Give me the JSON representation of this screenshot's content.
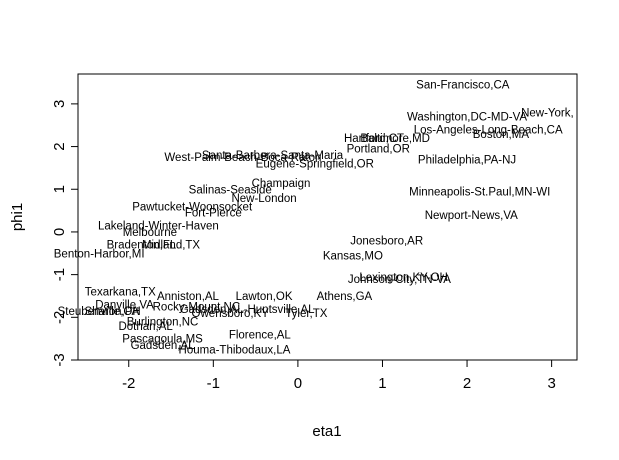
{
  "chart_data": {
    "type": "scatter",
    "title": "",
    "xlabel": "eta1",
    "ylabel": "phi1",
    "xlim": [
      -2.6,
      3.3
    ],
    "ylim": [
      -3.0,
      3.7
    ],
    "xticks": [
      "-2",
      "-1",
      "0",
      "1",
      "2",
      "3"
    ],
    "yticks": [
      "-3",
      "-2",
      "-1",
      "0",
      "1",
      "2",
      "3"
    ],
    "grid": false,
    "points": [
      {
        "label": "San-Francisco,CA",
        "x": 1.95,
        "y": 3.45
      },
      {
        "label": "Washington,DC-MD-VA",
        "x": 2.0,
        "y": 2.7
      },
      {
        "label": "New-York,",
        "x": 2.95,
        "y": 2.8
      },
      {
        "label": "Los-Angeles-Long-Beach,CA",
        "x": 2.25,
        "y": 2.4
      },
      {
        "label": "Boston,MA",
        "x": 2.4,
        "y": 2.3
      },
      {
        "label": "Hartford,CT",
        "x": 0.9,
        "y": 2.2
      },
      {
        "label": "Baltimore,MD",
        "x": 1.15,
        "y": 2.2
      },
      {
        "label": "Portland,OR",
        "x": 0.95,
        "y": 1.95
      },
      {
        "label": "Santa-Barbera-Santa-Maria",
        "x": -0.3,
        "y": 1.8
      },
      {
        "label": "West-Palm-Beach-Boca-Raton",
        "x": -0.65,
        "y": 1.75
      },
      {
        "label": "Eugene-Springfield,OR",
        "x": 0.2,
        "y": 1.6
      },
      {
        "label": "Philadelphia,PA-NJ",
        "x": 2.0,
        "y": 1.7
      },
      {
        "label": "Salinas-Seaside",
        "x": -0.8,
        "y": 1.0
      },
      {
        "label": "Champaign",
        "x": -0.2,
        "y": 1.15
      },
      {
        "label": "Minneapolis-St.Paul,MN-WI",
        "x": 2.15,
        "y": 0.95
      },
      {
        "label": "New-London",
        "x": -0.4,
        "y": 0.8
      },
      {
        "label": "Pawtucket-Woonsocket",
        "x": -1.25,
        "y": 0.6
      },
      {
        "label": "Fort-Pierce",
        "x": -1.0,
        "y": 0.45
      },
      {
        "label": "Newport-News,VA",
        "x": 2.05,
        "y": 0.4
      },
      {
        "label": "Lakeland-Winter-Haven",
        "x": -1.65,
        "y": 0.15
      },
      {
        "label": "Melbourne",
        "x": -1.75,
        "y": 0.0
      },
      {
        "label": "Bradenton,FL",
        "x": -1.85,
        "y": -0.3
      },
      {
        "label": "Midland,TX",
        "x": -1.5,
        "y": -0.3
      },
      {
        "label": "Benton-Harbor,MI",
        "x": -2.35,
        "y": -0.5
      },
      {
        "label": "Jonesboro,AR",
        "x": 1.05,
        "y": -0.2
      },
      {
        "label": "Kansas,MO",
        "x": 0.65,
        "y": -0.55
      },
      {
        "label": "Lexington,KY-OH",
        "x": 1.25,
        "y": -1.05
      },
      {
        "label": "Johnson-City,TN-VA",
        "x": 1.2,
        "y": -1.1
      },
      {
        "label": "Texarkana,TX",
        "x": -2.1,
        "y": -1.4
      },
      {
        "label": "Anniston,AL",
        "x": -1.3,
        "y": -1.5
      },
      {
        "label": "Lawton,OK",
        "x": -0.4,
        "y": -1.5
      },
      {
        "label": "Athens,GA",
        "x": 0.55,
        "y": -1.5
      },
      {
        "label": "Danville,VA",
        "x": -2.05,
        "y": -1.7
      },
      {
        "label": "Rocky-Mount,NC",
        "x": -1.2,
        "y": -1.75
      },
      {
        "label": "Gadsden,AL-Huntsville,AL",
        "x": -0.6,
        "y": -1.8
      },
      {
        "label": "Steubenville,OH",
        "x": -2.35,
        "y": -1.85
      },
      {
        "label": "Sharon,PA",
        "x": -2.2,
        "y": -1.85
      },
      {
        "label": "Owensboro,KY",
        "x": -0.8,
        "y": -1.9
      },
      {
        "label": "Tyler,TX",
        "x": 0.1,
        "y": -1.9
      },
      {
        "label": "Burlington,NC",
        "x": -1.6,
        "y": -2.1
      },
      {
        "label": "Dothan,AL",
        "x": -1.8,
        "y": -2.2
      },
      {
        "label": "Florence,AL",
        "x": -0.45,
        "y": -2.4
      },
      {
        "label": "Pascagoula,MS",
        "x": -1.6,
        "y": -2.5
      },
      {
        "label": "Gadsden,AL",
        "x": -1.6,
        "y": -2.65
      },
      {
        "label": "Houma-Thibodaux,LA",
        "x": -0.75,
        "y": -2.75
      }
    ]
  }
}
